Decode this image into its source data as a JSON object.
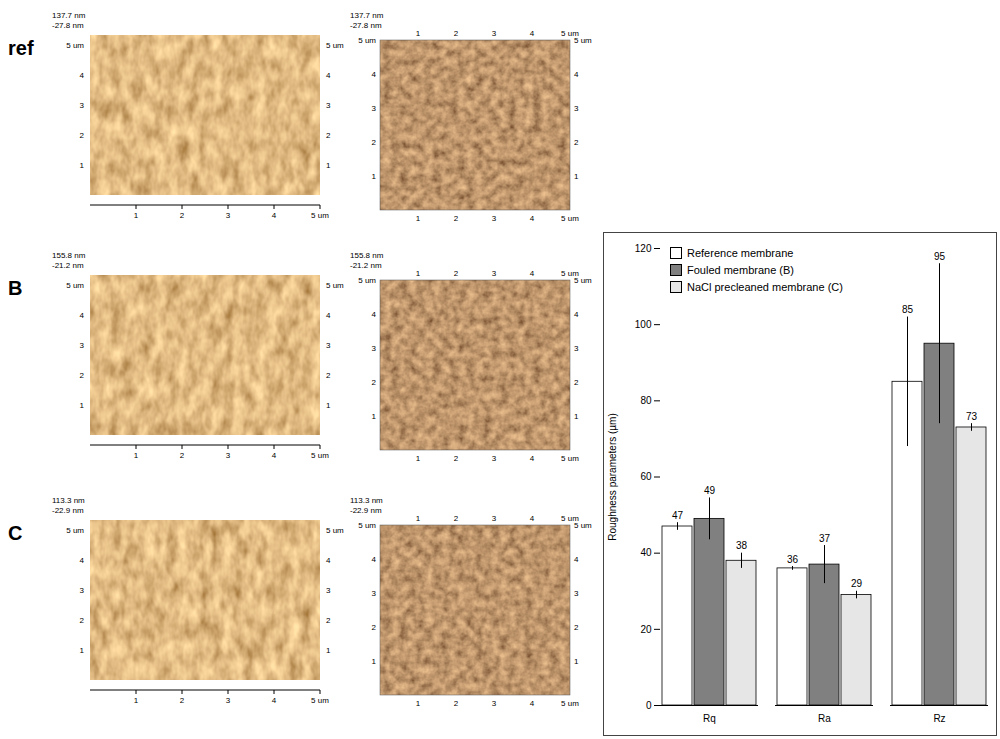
{
  "afm_panels": [
    {
      "label": "ref",
      "z_max": "137.7 nm",
      "z_min": "-27.8 nm"
    },
    {
      "label": "B",
      "z_max": "155.8 nm",
      "z_min": "-21.2 nm"
    },
    {
      "label": "C",
      "z_max": "113.3 nm",
      "z_min": "-22.9 nm"
    }
  ],
  "afm_axis": {
    "ticks": [
      "1",
      "2",
      "3",
      "4"
    ],
    "end": "5 um"
  },
  "chart_data": {
    "type": "bar",
    "categories": [
      "Rq",
      "Ra",
      "Rz"
    ],
    "series": [
      {
        "name": "Reference membrane",
        "color": "#ffffff",
        "values": [
          47,
          36,
          85
        ],
        "errors": [
          1,
          0.5,
          17
        ]
      },
      {
        "name": "Fouled membrane (B)",
        "color": "#808080",
        "values": [
          49,
          37,
          95
        ],
        "errors": [
          5.5,
          5,
          21
        ]
      },
      {
        "name": "NaCl precleaned membrane (C)",
        "color": "#e6e6e6",
        "values": [
          38,
          29,
          73
        ],
        "errors": [
          2,
          1,
          1
        ]
      }
    ],
    "y_label": "Roughness parameters (µm)",
    "ylim": [
      0,
      120
    ],
    "yticks": [
      0,
      20,
      40,
      60,
      80,
      100,
      120
    ],
    "grid": false,
    "legend": "top-left",
    "data_labels": true
  }
}
